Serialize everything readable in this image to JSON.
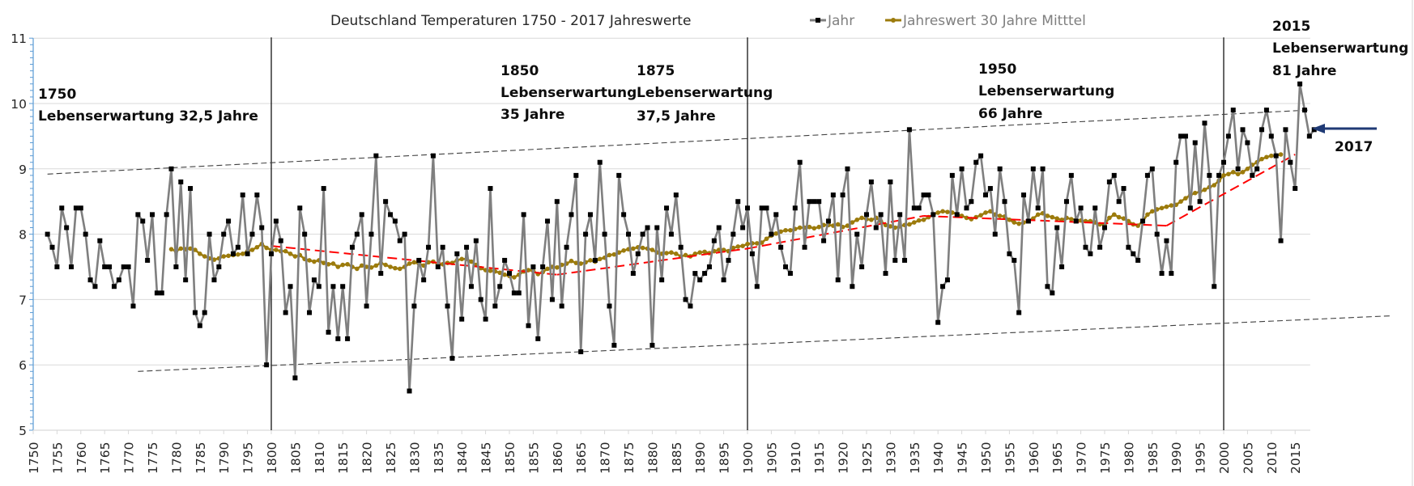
{
  "chart_data": {
    "type": "line",
    "title": "Deutschland Temperaturen 1750 -  2017 Jahreswerte",
    "xlabel": "",
    "ylabel": "",
    "xlim": [
      1750,
      2018
    ],
    "ylim": [
      5,
      11
    ],
    "y_ticks": [
      "5",
      "6",
      "7",
      "8",
      "9",
      "10",
      "11"
    ],
    "x_ticks": [
      "1750",
      "1755",
      "1760",
      "1765",
      "1770",
      "1775",
      "1780",
      "1785",
      "1790",
      "1795",
      "1800",
      "1805",
      "1810",
      "1815",
      "1820",
      "1825",
      "1830",
      "1835",
      "1840",
      "1845",
      "1850",
      "1855",
      "1860",
      "1865",
      "1870",
      "1875",
      "1880",
      "1885",
      "1890",
      "1895",
      "1900",
      "1905",
      "1910",
      "1915",
      "1920",
      "1925",
      "1930",
      "1935",
      "1940",
      "1945",
      "1950",
      "1955",
      "1960",
      "1965",
      "1970",
      "1975",
      "1980",
      "1985",
      "1990",
      "1995",
      "2000",
      "2005",
      "2010",
      "2015"
    ],
    "grid": "horizontal",
    "legend": {
      "placement": "top-right",
      "entries": [
        "Jahr",
        "Jahreswert 30 Jahre Mitttel"
      ]
    },
    "series": [
      {
        "name": "Jahr",
        "color": "#7f7f7f",
        "marker_color": "#000000",
        "start_year": 1753,
        "values": [
          8.0,
          7.8,
          7.5,
          8.4,
          8.1,
          7.5,
          8.4,
          8.4,
          8.0,
          7.3,
          7.2,
          7.9,
          7.5,
          7.5,
          7.2,
          7.3,
          7.5,
          7.5,
          6.9,
          8.3,
          8.2,
          7.6,
          8.3,
          7.1,
          7.1,
          8.3,
          9.0,
          7.5,
          8.8,
          7.3,
          8.7,
          6.8,
          6.6,
          6.8,
          8.0,
          7.3,
          7.5,
          8.0,
          8.2,
          7.7,
          7.8,
          8.6,
          7.7,
          8.0,
          8.6,
          8.1,
          6.0,
          7.7,
          8.2,
          7.9,
          6.8,
          7.2,
          5.8,
          8.4,
          8.0,
          6.8,
          7.3,
          7.2,
          8.7,
          6.5,
          7.2,
          6.4,
          7.2,
          6.4,
          7.8,
          8.0,
          8.3,
          6.9,
          8.0,
          9.2,
          7.4,
          8.5,
          8.3,
          8.2,
          7.9,
          8.0,
          5.6,
          6.9,
          7.6,
          7.3,
          7.8,
          9.2,
          7.5,
          7.8,
          6.9,
          6.1,
          7.7,
          6.7,
          7.8,
          7.2,
          7.9,
          7.0,
          6.7,
          8.7,
          6.9,
          7.2,
          7.6,
          7.4,
          7.1,
          7.1,
          8.3,
          6.6,
          7.5,
          6.4,
          7.5,
          8.2,
          7.0,
          8.5,
          6.9,
          7.8,
          8.3,
          8.9,
          6.2,
          8.0,
          8.3,
          7.6,
          9.1,
          8.0,
          6.9,
          6.3,
          8.9,
          8.3,
          8.0,
          7.4,
          7.7,
          8.0,
          8.1,
          6.3,
          8.1,
          7.3,
          8.4,
          8.0,
          8.6,
          7.8,
          7.0,
          6.9,
          7.4,
          7.3,
          7.4,
          7.5,
          7.9,
          8.1,
          7.3,
          7.6,
          8.0,
          8.5,
          8.1,
          8.4,
          7.7,
          7.2,
          8.4,
          8.4,
          8.0,
          8.3,
          7.8,
          7.5,
          7.4,
          8.4,
          9.1,
          7.8,
          8.5,
          8.5,
          8.5,
          7.9,
          8.2,
          8.6,
          7.3,
          8.6,
          9.0,
          7.2,
          8.0,
          7.5,
          8.3,
          8.8,
          8.1,
          8.3,
          7.4,
          8.8,
          7.6,
          8.3,
          7.6,
          9.6,
          8.4,
          8.4,
          8.6,
          8.6,
          8.3,
          6.65,
          7.2,
          7.3,
          8.9,
          8.3,
          9.0,
          8.4,
          8.5,
          9.1,
          9.2,
          8.6,
          8.7,
          8.0,
          9.0,
          8.5,
          7.7,
          7.6,
          6.8,
          8.6,
          8.2,
          9.0,
          8.4,
          9.0,
          7.2,
          7.1,
          8.1,
          7.5,
          8.5,
          8.9,
          8.2,
          8.4,
          7.8,
          7.7,
          8.4,
          7.8,
          8.1,
          8.8,
          8.9,
          8.5,
          8.7,
          7.8,
          7.7,
          7.6,
          8.2,
          8.9,
          9.0,
          8.0,
          7.4,
          7.9,
          7.4,
          9.1,
          9.5,
          9.5,
          8.4,
          9.4,
          8.5,
          9.7,
          8.9,
          7.2,
          8.9,
          9.1,
          9.5,
          9.9,
          9.0,
          9.6,
          9.4,
          8.9,
          9.0,
          9.6,
          9.9,
          9.5,
          9.2,
          7.9,
          9.6,
          9.1,
          8.7,
          10.3,
          9.9,
          9.5,
          9.6
        ]
      },
      {
        "name": "Jahreswert 30 Jahre Mitttel",
        "color": "#9c7b0c",
        "start_year": 1779,
        "values": [
          7.77,
          7.74,
          7.78,
          7.77,
          7.78,
          7.76,
          7.7,
          7.66,
          7.63,
          7.61,
          7.63,
          7.66,
          7.67,
          7.68,
          7.69,
          7.7,
          7.74,
          7.76,
          7.8,
          7.85,
          7.79,
          7.76,
          7.76,
          7.74,
          7.74,
          7.7,
          7.66,
          7.68,
          7.62,
          7.6,
          7.58,
          7.6,
          7.56,
          7.54,
          7.55,
          7.5,
          7.53,
          7.54,
          7.5,
          7.47,
          7.52,
          7.5,
          7.49,
          7.52,
          7.56,
          7.53,
          7.5,
          7.48,
          7.47,
          7.5,
          7.55,
          7.57,
          7.55,
          7.52,
          7.57,
          7.58,
          7.54,
          7.54,
          7.56,
          7.56,
          7.6,
          7.62,
          7.62,
          7.58,
          7.53,
          7.48,
          7.45,
          7.44,
          7.43,
          7.41,
          7.38,
          7.36,
          7.34,
          7.38,
          7.43,
          7.45,
          7.44,
          7.39,
          7.42,
          7.47,
          7.5,
          7.49,
          7.53,
          7.55,
          7.59,
          7.56,
          7.55,
          7.57,
          7.6,
          7.58,
          7.62,
          7.64,
          7.68,
          7.69,
          7.72,
          7.75,
          7.77,
          7.78,
          7.8,
          7.79,
          7.78,
          7.76,
          7.72,
          7.7,
          7.71,
          7.72,
          7.7,
          7.66,
          7.68,
          7.66,
          7.7,
          7.72,
          7.73,
          7.71,
          7.74,
          7.76,
          7.76,
          7.74,
          7.79,
          7.81,
          7.82,
          7.85,
          7.86,
          7.86,
          7.87,
          7.93,
          7.98,
          8.01,
          8.04,
          8.06,
          8.06,
          8.08,
          8.1,
          8.1,
          8.11,
          8.09,
          8.11,
          8.14,
          8.14,
          8.13,
          8.15,
          8.11,
          8.13,
          8.18,
          8.22,
          8.25,
          8.23,
          8.22,
          8.25,
          8.2,
          8.14,
          8.12,
          8.1,
          8.12,
          8.14,
          8.15,
          8.18,
          8.21,
          8.22,
          8.26,
          8.3,
          8.33,
          8.35,
          8.34,
          8.33,
          8.31,
          8.28,
          8.25,
          8.23,
          8.26,
          8.29,
          8.33,
          8.35,
          8.3,
          8.28,
          8.27,
          8.22,
          8.18,
          8.16,
          8.18,
          8.2,
          8.24,
          8.3,
          8.32,
          8.28,
          8.26,
          8.24,
          8.22,
          8.25,
          8.23,
          8.22,
          8.21,
          8.2,
          8.2,
          8.18,
          8.15,
          8.15,
          8.25,
          8.3,
          8.26,
          8.24,
          8.2,
          8.15,
          8.13,
          8.2,
          8.3,
          8.35,
          8.38,
          8.4,
          8.42,
          8.44,
          8.45,
          8.5,
          8.55,
          8.6,
          8.63,
          8.65,
          8.68,
          8.72,
          8.75,
          8.82,
          8.9,
          8.92,
          8.95,
          8.92,
          8.95,
          9.0,
          9.06,
          9.1,
          9.15,
          9.18,
          9.2,
          9.2,
          9.22
        ]
      }
    ],
    "trendlines": [
      {
        "name": "upper-envelope",
        "style": "dashed",
        "color": "#404040",
        "points": [
          [
            1753,
            8.92
          ],
          [
            2018,
            9.9
          ]
        ]
      },
      {
        "name": "lower-envelope",
        "style": "dashed",
        "color": "#404040",
        "points": [
          [
            1772,
            5.9
          ],
          [
            2035,
            6.75
          ]
        ]
      },
      {
        "name": "trend-1800-1860",
        "style": "dashed",
        "color": "#ff0000",
        "points": [
          [
            1800,
            7.82
          ],
          [
            1860,
            7.38
          ]
        ]
      },
      {
        "name": "trend-1860-1900",
        "style": "dashed",
        "color": "#ff0000",
        "points": [
          [
            1860,
            7.38
          ],
          [
            1900,
            7.78
          ]
        ]
      },
      {
        "name": "trend-1900-1935",
        "style": "dashed",
        "color": "#ff0000",
        "points": [
          [
            1900,
            7.78
          ],
          [
            1937,
            8.28
          ]
        ]
      },
      {
        "name": "trend-1935-1988",
        "style": "dashed",
        "color": "#ff0000",
        "points": [
          [
            1937,
            8.28
          ],
          [
            1988,
            8.13
          ]
        ]
      },
      {
        "name": "trend-1988-2015",
        "style": "dashed",
        "color": "#ff0000",
        "points": [
          [
            1988,
            8.13
          ],
          [
            2015,
            9.22
          ]
        ]
      }
    ],
    "reference_lines": [
      1800,
      1900,
      2000
    ],
    "annotations": [
      {
        "year_label": "1750",
        "text": "Lebenserwartung 32,5 Jahre"
      },
      {
        "year_label": "1850",
        "line2": "Lebenserwartung",
        "line3": "35 Jahre"
      },
      {
        "year_label": "1875",
        "line2": "Lebenserwartung",
        "line3": "37,5 Jahre"
      },
      {
        "year_label": "1950",
        "line2": "Lebenserwartung",
        "line3": "66 Jahre"
      },
      {
        "year_label": "2015",
        "line2": "Lebenserwartung",
        "line3": "81 Jahre"
      },
      {
        "year_label": "2017",
        "arrow_color": "#1f3a75"
      }
    ]
  }
}
